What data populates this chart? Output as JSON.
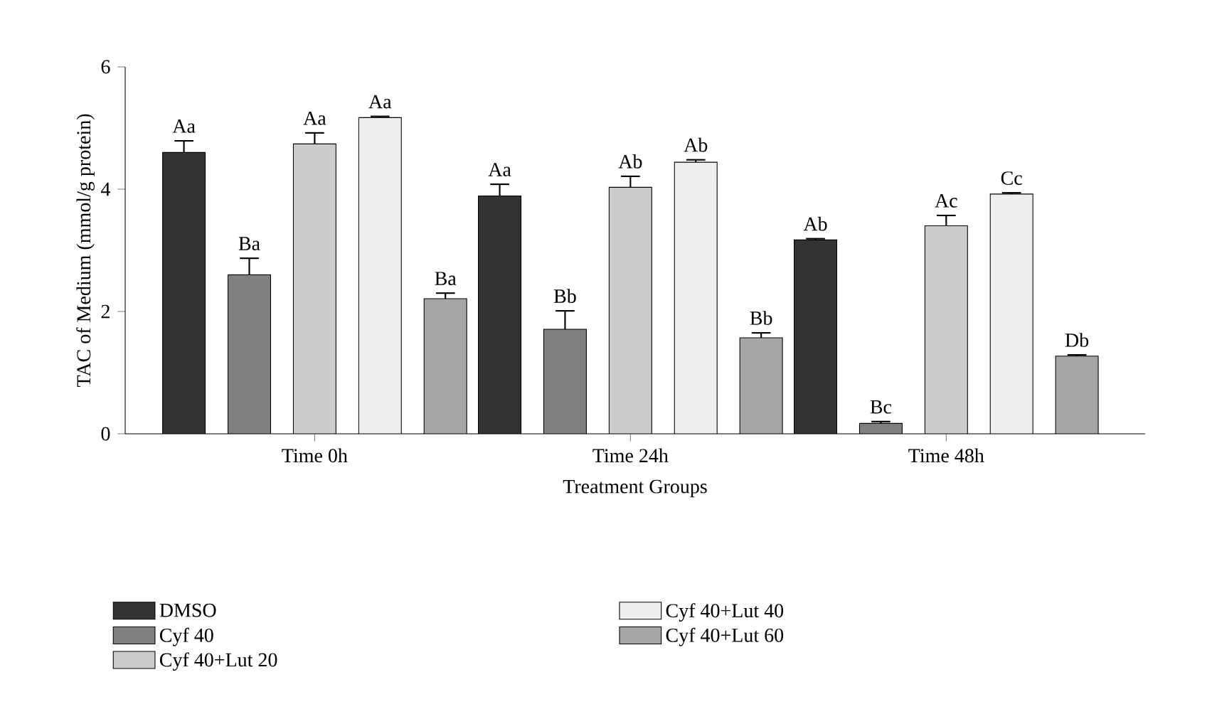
{
  "chart_data": {
    "type": "bar",
    "xlabel": "Treatment Groups",
    "ylabel": "TAC of Medium (mmol/g protein)",
    "categories": [
      "Time 0h",
      "Time 24h",
      "Time 48h"
    ],
    "series": [
      {
        "name": "DMSO",
        "color": "#333333",
        "values": [
          4.6,
          3.89,
          3.17
        ],
        "errors": [
          0.19,
          0.19,
          0.02
        ],
        "value_labels": [
          "Aa",
          "Aa",
          "Ab"
        ]
      },
      {
        "name": "Cyf 40",
        "color": "#808080",
        "values": [
          2.6,
          1.71,
          0.17
        ],
        "errors": [
          0.27,
          0.3,
          0.03
        ],
        "value_labels": [
          "Ba",
          "Bb",
          "Bc"
        ]
      },
      {
        "name": "Cyf 40+Lut 20",
        "color": "#cccccc",
        "values": [
          4.74,
          4.03,
          3.4
        ],
        "errors": [
          0.18,
          0.18,
          0.17
        ],
        "value_labels": [
          "Aa",
          "Ab",
          "Ac"
        ]
      },
      {
        "name": "Cyf 40+Lut 40",
        "color": "#eeeeee",
        "values": [
          5.17,
          4.44,
          3.92
        ],
        "errors": [
          0.02,
          0.04,
          0.02
        ],
        "value_labels": [
          "Aa",
          "Ab",
          "Cc"
        ]
      },
      {
        "name": "Cyf 40+Lut 60",
        "color": "#a6a6a6",
        "values": [
          2.21,
          1.57,
          1.27
        ],
        "errors": [
          0.09,
          0.08,
          0.02
        ],
        "value_labels": [
          "Ba",
          "Bb",
          "Db"
        ]
      }
    ],
    "ylim": [
      0,
      6
    ],
    "yticks": [
      0,
      2,
      4,
      6
    ],
    "grid": false,
    "legend": "bottom"
  }
}
